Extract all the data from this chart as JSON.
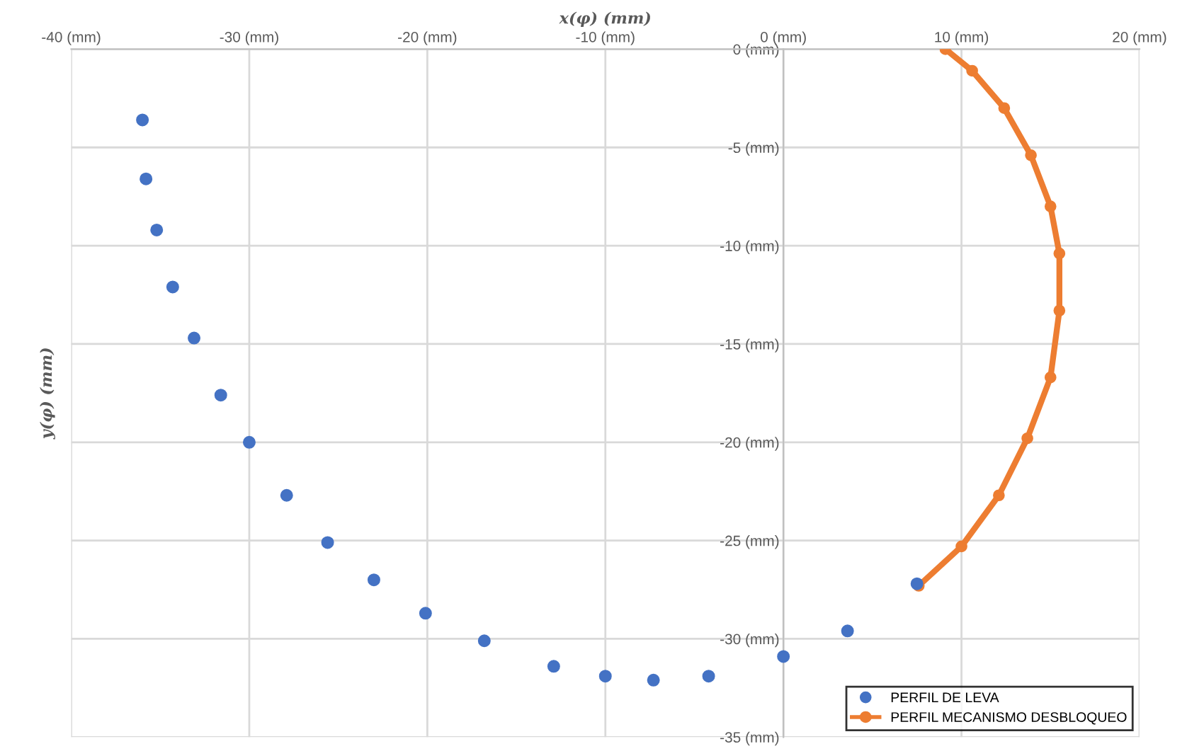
{
  "chart_data": {
    "type": "scatter",
    "xlabel": "x(φ) (mm)",
    "ylabel": "y(φ) (mm)",
    "xlim": [
      -40,
      20
    ],
    "ylim": [
      -35,
      0
    ],
    "xticks": [
      {
        "value": -40,
        "label": "-40 (mm)"
      },
      {
        "value": -30,
        "label": "-30 (mm)"
      },
      {
        "value": -20,
        "label": "-20 (mm)"
      },
      {
        "value": -10,
        "label": "-10 (mm)"
      },
      {
        "value": 0,
        "label": "0 (mm)"
      },
      {
        "value": 10,
        "label": "10 (mm)"
      },
      {
        "value": 20,
        "label": "20 (mm)"
      }
    ],
    "yticks": [
      {
        "value": 0,
        "label": "0 (mm)"
      },
      {
        "value": -5,
        "label": "-5 (mm)"
      },
      {
        "value": -10,
        "label": "-10 (mm)"
      },
      {
        "value": -15,
        "label": "-15 (mm)"
      },
      {
        "value": -20,
        "label": "-20 (mm)"
      },
      {
        "value": -25,
        "label": "-25 (mm)"
      },
      {
        "value": -30,
        "label": "-30 (mm)"
      },
      {
        "value": -35,
        "label": "-35 (mm)"
      }
    ],
    "grid": true,
    "legend": "bottom right",
    "marker": "circle",
    "series": [
      {
        "name": "PERFIL DE LEVA",
        "color": "#4472c4",
        "x": [
          -36.0,
          -35.8,
          -35.2,
          -34.3,
          -33.1,
          -31.6,
          -30.0,
          -27.9,
          -25.6,
          -23.0,
          -20.1,
          -16.8,
          -12.9,
          -10.0,
          -7.3,
          -4.2,
          0,
          3.6,
          7.5
        ],
        "values": [
          -3.6,
          -6.6,
          -9.2,
          -12.1,
          -14.7,
          -17.6,
          -20.0,
          -22.7,
          -25.1,
          -27.0,
          -28.7,
          -30.1,
          -31.4,
          -31.9,
          -32.1,
          -31.9,
          -30.9,
          -29.6,
          -27.2
        ]
      },
      {
        "name": "PERFIL MECANISMO DESBLOQUEO",
        "type": "line",
        "color": "#ed7d31",
        "x": [
          7.6,
          10.0,
          12.1,
          13.7,
          15.0,
          15.5,
          15.5,
          15.0,
          13.9,
          12.4,
          10.6,
          9.1
        ],
        "values": [
          -27.3,
          -25.3,
          -22.7,
          -19.8,
          -16.7,
          -13.3,
          -10.4,
          -8.0,
          -5.4,
          -3.0,
          -1.1,
          0.0
        ]
      }
    ]
  }
}
